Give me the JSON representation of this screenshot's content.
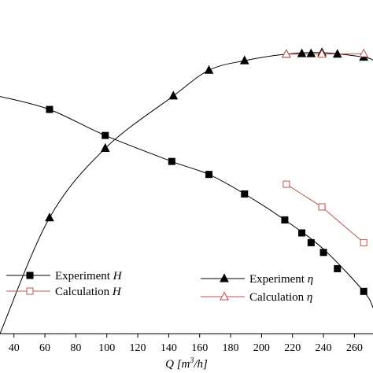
{
  "chart_data": {
    "type": "line",
    "title": "",
    "xlabel": "Q [m³/h]",
    "ylabel": "",
    "xlim": [
      31,
      272
    ],
    "x_ticks": [
      40,
      60,
      80,
      100,
      120,
      140,
      160,
      180,
      200,
      220,
      240,
      260
    ],
    "grid": false,
    "legend": "bottom",
    "colors": {
      "experiment": "#000000",
      "calculation": "#c0504d"
    },
    "head_axis": {
      "ylim": [
        14,
        23.3
      ]
    },
    "efficiency_axis": {
      "ylim": [
        0.3,
        0.9
      ]
    },
    "series": [
      {
        "name": "Experiment H",
        "axis": "head_axis",
        "marker": "square-filled",
        "color": "#000000",
        "points": [
          [
            63,
            20.9
          ],
          [
            99,
            20.1
          ],
          [
            142,
            19.3
          ],
          [
            166,
            18.9
          ],
          [
            189,
            18.3
          ],
          [
            215,
            17.5
          ],
          [
            226,
            17.1
          ],
          [
            232,
            16.8
          ],
          [
            240,
            16.5
          ],
          [
            249,
            16.0
          ],
          [
            266,
            15.3
          ]
        ],
        "curve": [
          [
            31,
            21.3
          ],
          [
            63,
            20.9
          ],
          [
            99,
            20.1
          ],
          [
            142,
            19.3
          ],
          [
            166,
            18.9
          ],
          [
            189,
            18.3
          ],
          [
            215,
            17.5
          ],
          [
            240,
            16.6
          ],
          [
            266,
            15.3
          ],
          [
            272,
            14.8
          ]
        ]
      },
      {
        "name": "Calculation H",
        "axis": "head_axis",
        "marker": "square-open",
        "color": "#c0504d",
        "points": [
          [
            216,
            18.6
          ],
          [
            239,
            17.9
          ],
          [
            266,
            16.8
          ]
        ]
      },
      {
        "name": "Experiment η",
        "axis": "efficiency_axis",
        "marker": "triangle-filled",
        "color": "#000000",
        "points": [
          [
            63,
            0.53
          ],
          [
            99,
            0.668
          ],
          [
            143,
            0.772
          ],
          [
            166,
            0.823
          ],
          [
            189,
            0.842
          ],
          [
            216,
            0.855
          ],
          [
            226,
            0.856
          ],
          [
            232,
            0.856
          ],
          [
            239,
            0.858
          ],
          [
            249,
            0.855
          ],
          [
            266,
            0.849
          ]
        ],
        "curve": [
          [
            31,
            0.3
          ],
          [
            63,
            0.53
          ],
          [
            99,
            0.668
          ],
          [
            143,
            0.772
          ],
          [
            166,
            0.823
          ],
          [
            189,
            0.842
          ],
          [
            216,
            0.855
          ],
          [
            239,
            0.858
          ],
          [
            266,
            0.849
          ],
          [
            272,
            0.843
          ]
        ]
      },
      {
        "name": "Calculation η",
        "axis": "efficiency_axis",
        "marker": "triangle-open",
        "color": "#c0504d",
        "points": [
          [
            216,
            0.855
          ],
          [
            239,
            0.855
          ],
          [
            266,
            0.856
          ]
        ]
      }
    ],
    "legend_entries": [
      {
        "series": 0,
        "label": "Experiment",
        "symbol": "H"
      },
      {
        "series": 1,
        "label": "Calculation",
        "symbol": "H"
      },
      {
        "series": 2,
        "label": "Experiment",
        "symbol": "η"
      },
      {
        "series": 3,
        "label": "Calculation",
        "symbol": "η"
      }
    ]
  }
}
